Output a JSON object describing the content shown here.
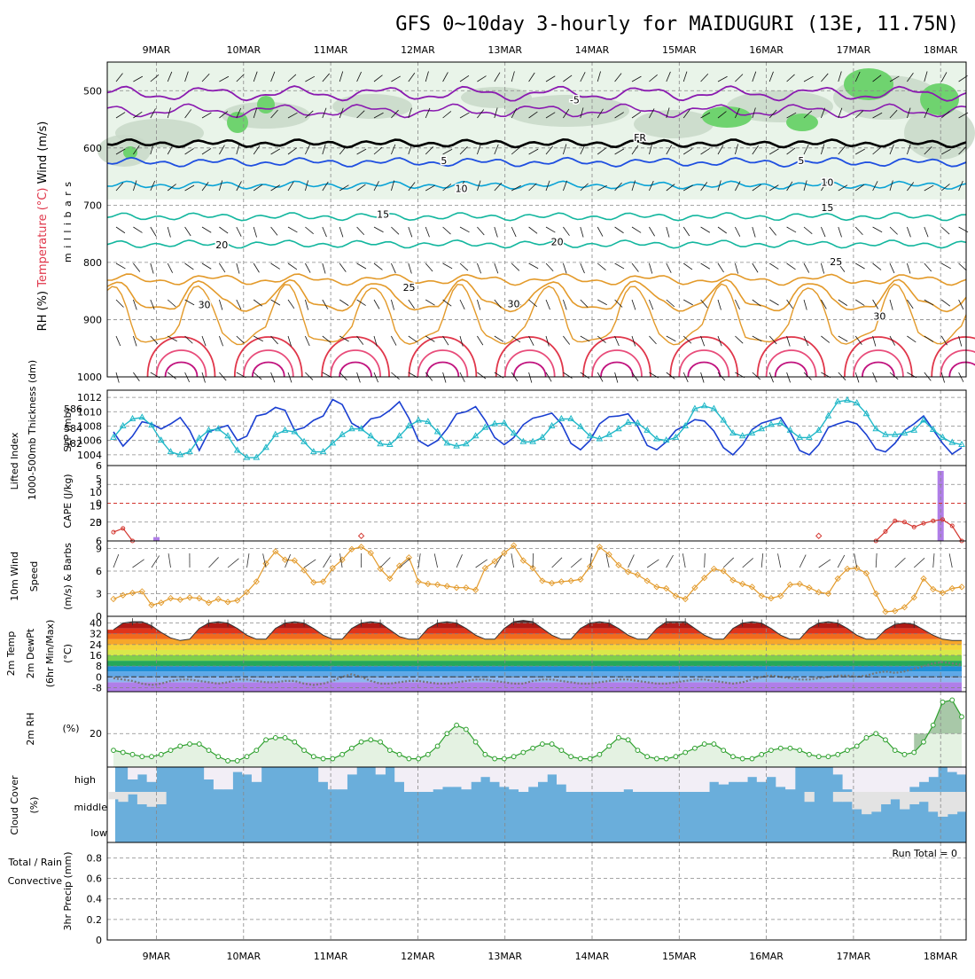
{
  "title": "GFS 0~10day 3-hourly for MAIDUGURI (13E, 11.75N)",
  "date_labels": [
    "9MAR",
    "10MAR",
    "11MAR",
    "12MAR",
    "13MAR",
    "14MAR",
    "15MAR",
    "16MAR",
    "17MAR",
    "18MAR"
  ],
  "colors": {
    "rh_green": "#6fd36f",
    "rh_gray": "#a8b8a8",
    "temp_purple": "#8a1ab0",
    "temp_blue": "#1f4fe0",
    "temp_cyan": "#0aa3d6",
    "temp_teal": "#13b69e",
    "temp_orange": "#e39a2a",
    "temp_red": "#e0364a",
    "slp": "#1a3fd1",
    "thickness": "#21b8c8",
    "lifted": "#d3352e",
    "cape": "#b07ee8",
    "wind10": "#e39a2a",
    "rh2m": "#2ea02e",
    "cloud": "#6aaedb",
    "cloud_gap": "#f2eef6"
  },
  "chart_data": [
    {
      "type": "heatmap",
      "name": "vertical-profile",
      "ylabel_parts": [
        "RH (%)",
        "Temperature (°C)",
        "Wind (m/s)"
      ],
      "y_unit": "m i l l i b a r s",
      "y_ticks": [
        500,
        600,
        700,
        800,
        900,
        1000
      ],
      "ylim": [
        1000,
        450
      ],
      "isotherm_labels": [
        {
          "text": "-5",
          "day": 4.8,
          "p": 522
        },
        {
          "text": "FR",
          "day": 5.55,
          "p": 588
        },
        {
          "text": "5",
          "day": 3.3,
          "p": 628
        },
        {
          "text": "5",
          "day": 7.4,
          "p": 628
        },
        {
          "text": "10",
          "day": 3.5,
          "p": 677
        },
        {
          "text": "10",
          "day": 7.7,
          "p": 666
        },
        {
          "text": "15",
          "day": 2.6,
          "p": 722
        },
        {
          "text": "15",
          "day": 7.7,
          "p": 710
        },
        {
          "text": "20",
          "day": 0.75,
          "p": 775
        },
        {
          "text": "20",
          "day": 4.6,
          "p": 770
        },
        {
          "text": "25",
          "day": 2.9,
          "p": 850
        },
        {
          "text": "25",
          "day": 7.8,
          "p": 805
        },
        {
          "text": "30",
          "day": 0.55,
          "p": 880
        },
        {
          "text": "30",
          "day": 4.1,
          "p": 878
        },
        {
          "text": "30",
          "day": 8.3,
          "p": 900
        }
      ]
    },
    {
      "type": "line",
      "name": "slp-thickness",
      "ylabel_left": "1000-500mb Thickness (dm)",
      "ylabel_right": "SLP (mb)",
      "yticks_left": [
        582,
        584,
        586
      ],
      "yticks_right": [
        1004,
        1006,
        1008,
        1010,
        1012
      ],
      "ylim_right": [
        1002.5,
        1013
      ],
      "series": [
        {
          "name": "SLP",
          "values": [
            1007.2,
            1005.2,
            1006.6,
            1008.6,
            1008.3,
            1007.6,
            1008.3,
            1009.2,
            1007.4,
            1004.6,
            1007.2,
            1007.7,
            1008.1,
            1006.0,
            1006.6,
            1009.4,
            1009.7,
            1010.6,
            1010.2,
            1007.4,
            1007.8,
            1008.8,
            1009.4,
            1011.7,
            1011.0,
            1008.4,
            1007.6,
            1009.0,
            1009.3,
            1010.2,
            1011.4,
            1009.1,
            1006.0,
            1005.2,
            1006.0,
            1007.6,
            1009.7,
            1010.0,
            1010.7,
            1008.8,
            1006.4,
            1005.4,
            1006.4,
            1008.2,
            1009.1,
            1009.4,
            1009.8,
            1008.3,
            1005.6,
            1004.7,
            1006.0,
            1008.3,
            1009.3,
            1009.4,
            1009.7,
            1008.0,
            1005.3,
            1004.7,
            1005.8,
            1007.4,
            1008.1,
            1008.9,
            1008.7,
            1007.3,
            1005.0,
            1004.0,
            1005.4,
            1007.5,
            1008.4,
            1008.8,
            1009.2,
            1007.2,
            1004.6,
            1004.0,
            1005.4,
            1007.8,
            1008.3,
            1008.7,
            1008.3,
            1006.8,
            1004.8,
            1004.4,
            1005.6,
            1007.4,
            1008.3,
            1009.4,
            1007.5,
            1005.6,
            1004.1,
            1005.0
          ]
        },
        {
          "name": "Thickness",
          "values": [
            1006.4,
            1008.0,
            1009.0,
            1009.2,
            1008.1,
            1006.0,
            1004.4,
            1004.0,
            1004.4,
            1006.3,
            1007.4,
            1007.6,
            1006.6,
            1004.6,
            1003.6,
            1003.6,
            1005.0,
            1006.8,
            1007.4,
            1007.2,
            1005.8,
            1004.4,
            1004.4,
            1005.6,
            1006.8,
            1007.6,
            1007.6,
            1006.6,
            1005.5,
            1005.4,
            1006.6,
            1008.0,
            1008.8,
            1008.6,
            1007.2,
            1005.6,
            1005.2,
            1005.5,
            1006.6,
            1007.8,
            1008.3,
            1008.4,
            1007.0,
            1005.8,
            1005.8,
            1006.4,
            1008.0,
            1009.0,
            1009.0,
            1007.9,
            1006.6,
            1006.2,
            1006.8,
            1007.6,
            1008.5,
            1008.4,
            1007.4,
            1006.2,
            1006.0,
            1006.4,
            1008.0,
            1010.4,
            1010.8,
            1010.4,
            1008.8,
            1007.0,
            1006.6,
            1007.0,
            1007.6,
            1008.2,
            1008.4,
            1007.4,
            1006.4,
            1006.4,
            1007.4,
            1009.4,
            1011.4,
            1011.6,
            1011.2,
            1009.7,
            1007.6,
            1006.8,
            1006.8,
            1007.0,
            1007.4,
            1008.8,
            1007.5,
            1006.4,
            1005.7,
            1005.4
          ]
        }
      ]
    },
    {
      "type": "line",
      "name": "lifted-cape",
      "ylabel_left": "Lifted Index",
      "ylabel_right": "CAPE (J/kg)",
      "yticks_left": [
        -6,
        -3,
        0,
        3,
        6
      ],
      "yticks_right": [
        5,
        10,
        15,
        20
      ],
      "lifted_index": [
        4.6,
        4.0,
        6.0,
        6,
        6,
        6,
        6,
        6,
        6,
        6,
        6,
        6,
        6,
        6,
        6,
        6,
        6,
        6,
        6,
        6,
        6,
        6,
        6,
        6,
        6,
        6,
        5.2,
        6,
        6,
        6,
        6,
        6,
        6,
        6,
        6,
        6,
        6,
        6,
        6,
        6,
        6,
        6,
        6,
        6,
        6,
        6,
        6,
        6,
        6,
        6,
        6,
        6,
        6,
        6,
        6,
        6,
        6,
        6,
        6,
        6,
        6,
        6,
        6,
        6,
        6,
        6,
        6,
        6,
        6,
        6,
        6,
        6,
        6,
        6,
        5.2,
        6,
        6,
        6,
        6,
        6,
        6,
        6,
        6,
        6,
        6,
        6,
        6,
        6,
        6,
        6,
        6,
        6,
        6,
        6,
        6,
        6,
        6,
        6,
        6,
        6,
        6,
        6,
        6,
        6,
        6,
        6,
        6,
        6,
        6,
        6,
        6,
        6,
        6,
        6,
        6,
        6,
        6,
        6,
        6,
        6,
        6,
        6,
        6,
        6,
        6,
        6,
        6,
        6,
        6
      ],
      "lifted_tail": [
        6,
        4.5,
        2.8,
        3.0,
        3.8,
        3.2,
        2.8,
        2.6,
        3.6,
        6
      ],
      "cape": [
        {
          "day": 0.0,
          "v": 1.2
        },
        {
          "day": 9.0,
          "v": 22
        }
      ]
    },
    {
      "type": "line",
      "name": "wind10m",
      "ylabel": "10m Wind Speed & Barbs (m/s)",
      "yticks": [
        0,
        3,
        6,
        9
      ],
      "ylim": [
        0,
        10
      ],
      "values": [
        2.3,
        2.8,
        3.1,
        3.3,
        1.5,
        1.8,
        2.4,
        2.2,
        2.5,
        2.4,
        1.8,
        2.3,
        1.9,
        2.1,
        3.2,
        4.6,
        7.0,
        8.6,
        7.5,
        7.4,
        6.1,
        4.5,
        4.6,
        6.4,
        7.5,
        8.9,
        9.2,
        8.4,
        6.3,
        5.0,
        6.7,
        7.8,
        4.6,
        4.3,
        4.2,
        4.0,
        3.8,
        3.8,
        3.5,
        6.4,
        7.3,
        8.4,
        9.4,
        7.4,
        6.4,
        4.7,
        4.4,
        4.6,
        4.7,
        4.9,
        6.6,
        9.2,
        8.2,
        6.8,
        5.9,
        5.5,
        4.7,
        3.9,
        3.7,
        2.7,
        2.3,
        3.8,
        5.1,
        6.3,
        6.0,
        4.8,
        4.3,
        3.9,
        2.7,
        2.4,
        2.7,
        4.2,
        4.3,
        3.8,
        3.2,
        3.0,
        5.0,
        6.3,
        6.4,
        5.7,
        3.0,
        0.6,
        0.7,
        1.2,
        2.5,
        5.0,
        3.6,
        3.1,
        3.7,
        3.9
      ]
    },
    {
      "type": "area",
      "name": "temp2m",
      "ylabel": "2m Temp 2m DewPt (6hr Min/Max) (°C)",
      "yticks": [
        -8,
        0,
        8,
        16,
        24,
        32,
        40
      ],
      "ylim": [
        -11,
        45
      ],
      "temp": [
        35,
        40,
        41,
        41,
        38,
        33,
        29,
        27,
        28,
        36,
        40,
        41,
        40,
        36,
        31,
        28,
        28,
        36,
        40,
        41,
        40,
        36,
        31,
        28,
        28,
        36,
        40,
        41,
        40,
        35,
        30,
        28,
        28,
        36,
        40,
        41,
        40,
        36,
        31,
        28,
        28,
        36,
        41,
        42,
        41,
        36,
        31,
        28,
        28,
        36,
        40,
        41,
        40,
        36,
        31,
        28,
        28,
        36,
        41,
        41,
        41,
        36,
        31,
        28,
        28,
        36,
        40,
        41,
        40,
        36,
        31,
        28,
        28,
        36,
        40,
        41,
        40,
        36,
        31,
        28,
        28,
        35,
        39,
        40,
        39,
        35,
        31,
        28,
        27,
        27
      ],
      "dewpt": [
        -1,
        -2,
        -3,
        -5,
        -6,
        -5,
        -3,
        -2,
        -2,
        -3,
        -4,
        -5,
        -4,
        -2,
        -2,
        -3,
        -4,
        -4,
        -3,
        -3,
        -5,
        -6,
        -5,
        -3,
        0,
        2,
        0,
        -3,
        -5,
        -5,
        -4,
        -3,
        -3,
        -4,
        -5,
        -5,
        -4,
        -3,
        -2,
        -2,
        -3,
        -4,
        -5,
        -5,
        -3,
        -2,
        -2,
        -3,
        -4,
        -5,
        -5,
        -4,
        -3,
        -2,
        -2,
        -3,
        -4,
        -5,
        -5,
        -4,
        -3,
        -2,
        -2,
        -3,
        -4,
        -5,
        -4,
        -2,
        0,
        1,
        0,
        -1,
        -2,
        -2,
        -1,
        0,
        1,
        1,
        0,
        1,
        3,
        4,
        3,
        4,
        6,
        8,
        10,
        11,
        10,
        9
      ]
    },
    {
      "type": "area",
      "name": "rh2m",
      "ylabel": "2m RH",
      "y_unit": "(%)",
      "yticks": [
        20
      ],
      "ylim": [
        4,
        40
      ],
      "values": [
        12,
        11,
        10,
        9,
        9,
        10,
        12,
        14,
        15,
        15,
        12,
        9,
        7,
        7,
        9,
        12,
        17,
        18,
        18,
        16,
        12,
        9,
        8,
        8,
        10,
        13,
        16,
        17,
        16,
        12,
        10,
        8,
        8,
        10,
        14,
        20,
        24,
        22,
        16,
        10,
        8,
        8,
        9,
        11,
        13,
        15,
        15,
        12,
        9,
        8,
        8,
        10,
        14,
        18,
        17,
        12,
        9,
        8,
        8,
        9,
        11,
        13,
        15,
        15,
        12,
        9,
        8,
        8,
        10,
        12,
        13,
        13,
        12,
        10,
        9,
        9,
        10,
        12,
        14,
        18,
        20,
        17,
        12,
        10,
        11,
        16,
        24,
        35,
        36,
        28
      ]
    },
    {
      "type": "heatmap",
      "name": "cloud-cover",
      "ylabel": "Cloud Cover (%)",
      "levels": [
        "high",
        "middle",
        "low"
      ],
      "high_gap": [
        0,
        0,
        0.5,
        0.3,
        0.6,
        0,
        0,
        0,
        0,
        0,
        0.5,
        0.9,
        0.9,
        0.2,
        0.3,
        0.6,
        0,
        0,
        0,
        0,
        0,
        0,
        0.6,
        0.9,
        0.9,
        0.3,
        0,
        0,
        0.3,
        0,
        0.6,
        1,
        1,
        1,
        0.9,
        0.8,
        0.8,
        0.9,
        0.6,
        0.4,
        0.6,
        0.8,
        0.9,
        1,
        0.8,
        0.6,
        0.3,
        0.7,
        1,
        1,
        1,
        1,
        1,
        1,
        0.9,
        1,
        1,
        1,
        1,
        1,
        1,
        1,
        1,
        0.6,
        0.7,
        0.6,
        0.6,
        0.4,
        0.6,
        0.4,
        0.8,
        0.9,
        0,
        0,
        0,
        0,
        0.3,
        0.9,
        1,
        1,
        1,
        1,
        1,
        1,
        0.8,
        0.6,
        0.4,
        0,
        0.2,
        0.3
      ],
      "middle_gap": [
        0.3,
        0.4,
        0.1,
        0.5,
        0.6,
        0.5,
        0,
        0,
        0,
        0,
        0,
        0,
        0,
        0,
        0,
        0,
        0,
        0,
        0,
        0,
        0,
        0,
        0,
        0,
        0,
        0,
        0,
        0,
        0,
        0,
        0,
        0,
        0,
        0,
        0,
        0,
        0,
        0,
        0,
        0,
        0,
        0,
        0,
        0,
        0,
        0,
        0,
        0,
        0,
        0,
        0,
        0,
        0,
        0,
        0,
        0,
        0,
        0,
        0,
        0,
        0,
        0,
        0,
        0,
        0,
        0,
        0,
        0,
        0,
        0,
        0,
        0,
        0,
        0.4,
        0,
        0,
        0.4,
        0.4,
        0.7,
        0.9,
        0.8,
        0.5,
        0.3,
        0.7,
        0.5,
        0.4,
        0.8,
        1,
        0.9,
        0.8
      ]
    },
    {
      "type": "bar",
      "name": "precip",
      "ylabel_left": [
        "Total / Rain",
        "Convective"
      ],
      "ylabel": "3hr Precip (mm)",
      "yticks": [
        0,
        0.2,
        0.4,
        0.6,
        0.8
      ],
      "ylim": [
        0,
        0.95
      ],
      "annotation": "Run Total = 0",
      "values": []
    }
  ]
}
